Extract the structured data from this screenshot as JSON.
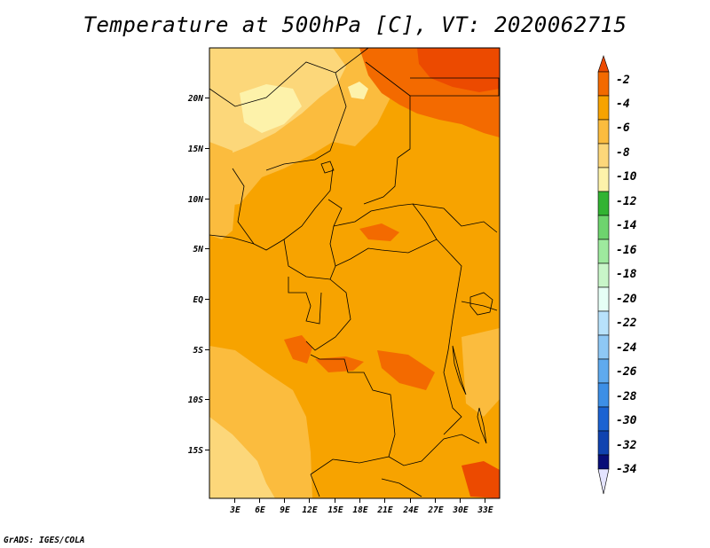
{
  "title": "Temperature at 500hPa [C], VT: 2020062715",
  "credit": "GrADS: IGES/COLA",
  "map": {
    "lon_labels": [
      "3E",
      "6E",
      "9E",
      "12E",
      "15E",
      "18E",
      "21E",
      "24E",
      "27E",
      "30E",
      "33E"
    ],
    "lat_labels": [
      "20N",
      "15N",
      "10N",
      "5N",
      "EQ",
      "5S",
      "10S",
      "15S"
    ],
    "base_fill": "#f7a300"
  },
  "colorbar": {
    "labels": [
      "-2",
      "-4",
      "-6",
      "-8",
      "-10",
      "-12",
      "-14",
      "-16",
      "-18",
      "-20",
      "-22",
      "-24",
      "-26",
      "-28",
      "-30",
      "-32",
      "-34"
    ],
    "colors": [
      "#ec4a00",
      "#f36a00",
      "#f7a300",
      "#fbbc3e",
      "#fcd77a",
      "#fdf2aa",
      "#32b332",
      "#6ed46e",
      "#9ee99e",
      "#c9f6c9",
      "#e6fff6",
      "#b8e2fb",
      "#8ec8f5",
      "#5faaee",
      "#3d8fe6",
      "#1b63d2",
      "#1043b0",
      "#080e78",
      "#e4e4ff"
    ]
  }
}
